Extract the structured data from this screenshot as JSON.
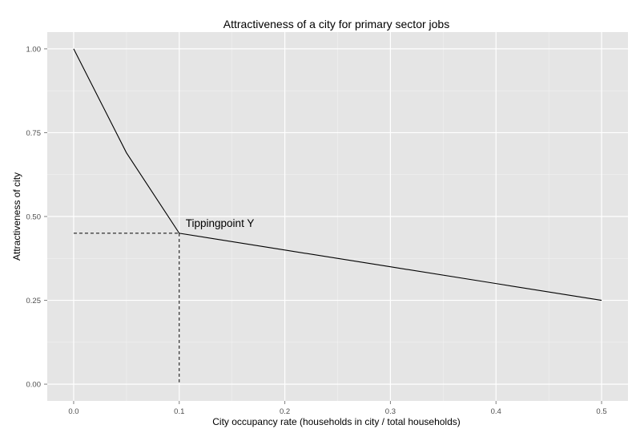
{
  "chart_data": {
    "type": "line",
    "title": "Attractiveness of a city for primary sector jobs",
    "xlabel": "City occupancy rate (households in city / total households)",
    "ylabel": "Attractiveness of city",
    "xlim": [
      -0.025,
      0.525
    ],
    "ylim": [
      -0.05,
      1.05
    ],
    "x_ticks": [
      0.0,
      0.1,
      0.2,
      0.3,
      0.4,
      0.5
    ],
    "x_tick_labels": [
      "0.0",
      "0.1",
      "0.2",
      "0.3",
      "0.4",
      "0.5"
    ],
    "y_ticks": [
      0.0,
      0.25,
      0.5,
      0.75,
      1.0
    ],
    "y_tick_labels": [
      "0.00",
      "0.25",
      "0.50",
      "0.75",
      "1.00"
    ],
    "grid": true,
    "series": [
      {
        "x": [
          0.0,
          0.05,
          0.1,
          0.2,
          0.3,
          0.4,
          0.5
        ],
        "y": [
          1.0,
          0.69,
          0.45,
          0.4,
          0.35,
          0.3,
          0.25
        ],
        "color": "#000000"
      }
    ],
    "reference_lines": {
      "x": 0.1,
      "y": 0.45,
      "style": "dashed"
    },
    "annotations": [
      {
        "text": "Tippingpoint Y",
        "x": 0.1,
        "y": 0.45
      }
    ],
    "colors": {
      "panel_background": "#e5e5e5",
      "grid_major": "#ffffff",
      "grid_minor": "#f2f2f2",
      "line": "#000000"
    }
  }
}
